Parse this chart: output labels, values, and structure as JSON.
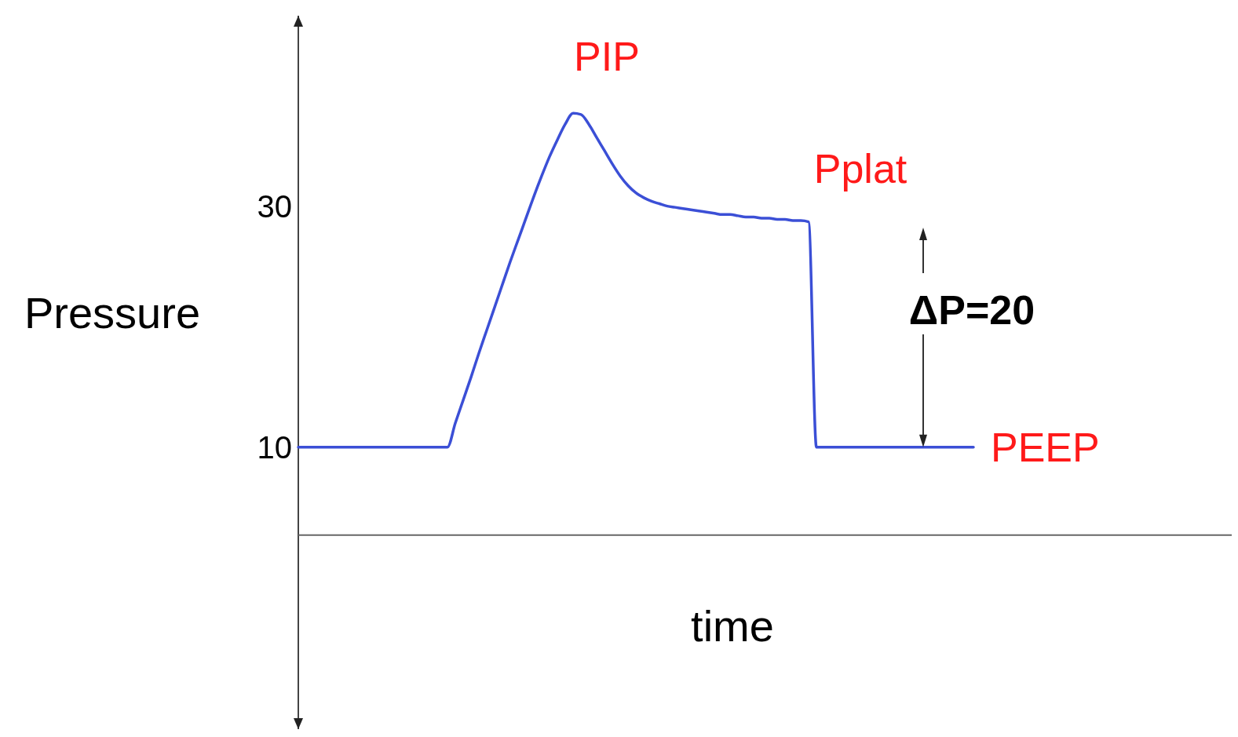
{
  "chart_data": {
    "type": "line",
    "xlabel": "time",
    "ylabel": "Pressure",
    "categories": [
      null,
      null,
      null,
      null,
      null,
      null,
      null,
      null,
      null,
      null,
      null,
      null,
      null,
      null,
      null,
      null,
      null,
      null,
      null,
      null,
      null,
      null,
      null,
      null,
      null,
      null,
      null,
      null,
      null,
      null,
      null,
      null,
      null,
      null,
      null,
      null,
      null,
      null,
      null,
      null,
      null,
      null,
      null,
      null,
      null,
      null,
      null,
      null,
      null,
      null,
      null,
      null,
      null,
      null,
      null,
      null,
      null,
      null,
      null,
      null,
      null,
      null,
      null,
      null,
      null,
      null,
      null,
      null,
      null,
      null,
      null,
      null,
      null,
      null,
      null,
      null,
      null,
      null,
      null,
      null,
      null,
      null,
      null,
      null,
      null,
      null,
      null
    ],
    "series": [
      {
        "color": "#3b4fd6",
        "values": [
          10,
          10,
          10,
          10,
          10,
          10,
          10,
          10,
          10,
          10,
          10,
          10,
          10,
          10,
          10,
          10,
          10,
          10,
          10,
          10,
          12.0,
          13.9,
          15.8,
          17.8,
          19.7,
          21.6,
          23.5,
          25.4,
          27.2,
          29.0,
          30.8,
          32.5,
          34.1,
          35.5,
          36.8,
          37.7,
          37.6,
          36.8,
          35.7,
          34.6,
          33.5,
          32.5,
          31.7,
          31.1,
          30.7,
          30.4,
          30.2,
          30.0,
          29.9,
          29.8,
          29.7,
          29.6,
          29.5,
          29.4,
          29.3,
          29.3,
          29.2,
          29.1,
          29.1,
          29.0,
          29.0,
          28.9,
          28.9,
          28.8,
          28.8,
          28.7,
          10,
          10,
          10,
          10,
          10,
          10,
          10,
          10,
          10,
          10,
          10,
          10,
          10,
          10,
          10,
          10,
          10,
          10,
          10,
          10,
          10
        ]
      }
    ],
    "ylim": [
      -13.4,
      45.8
    ],
    "yticks": [
      10,
      30
    ],
    "tick_labels": "y",
    "grid": false,
    "marker": "none",
    "line_style": "solid",
    "ref_lines": [
      {
        "axis": "y",
        "value": 2.7
      }
    ],
    "annotations": [
      "PIP",
      "Pplat",
      "PEEP",
      "ΔP=20"
    ]
  }
}
